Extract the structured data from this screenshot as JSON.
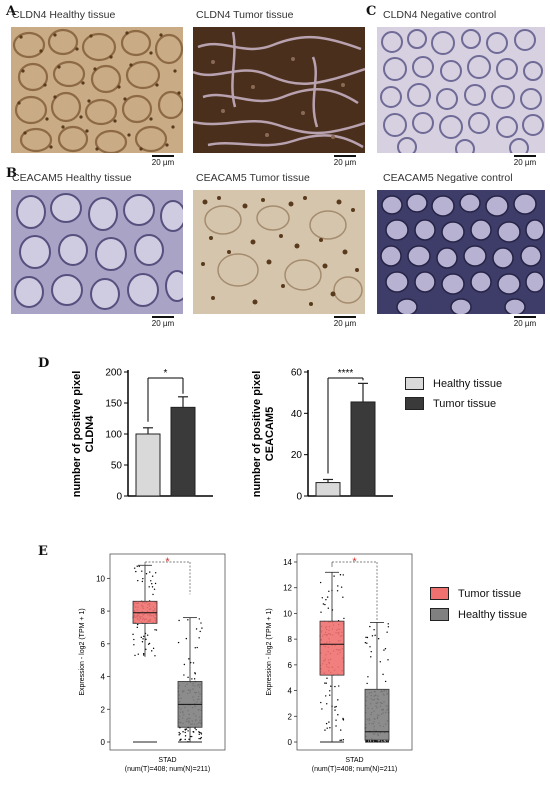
{
  "panels": {
    "a": "A",
    "c": "C",
    "b": "B",
    "d": "D",
    "e": "E"
  },
  "histology": {
    "cldn4_healthy": "CLDN4 Healthy tissue",
    "cldn4_tumor": "CLDN4 Tumor tissue",
    "cldn4_neg": "CLDN4 Negative control",
    "ceacam5_healthy": "CEACAM5 Healthy tissue",
    "ceacam5_tumor": "CEACAM5 Tumor tissue",
    "ceacam5_neg": "CEACAM5 Negative control",
    "scale_label": "20 µm"
  },
  "colors": {
    "healthy_bar": "#d9d9d9",
    "tumor_bar": "#3a3a3a",
    "tumor_box": "#f07170",
    "healthy_box": "#808080",
    "significance": "#d0312d"
  },
  "legend_d": {
    "healthy": "Healthy tissue",
    "tumor": "Tumor tissue"
  },
  "legend_e": {
    "tumor": "Tumor tissue",
    "healthy": "Healthy tissue"
  },
  "chart_data": [
    {
      "type": "bar",
      "panel": "D",
      "ylabel_line1": "number of positive pixel",
      "ylabel_line2": "CLDN4",
      "categories": [
        "Healthy tissue",
        "Tumor tissue"
      ],
      "values": [
        100,
        143
      ],
      "errors": [
        10,
        17
      ],
      "ylim": [
        0,
        200
      ],
      "yticks": [
        "0",
        "50",
        "100",
        "150",
        "200"
      ],
      "significance": "*"
    },
    {
      "type": "bar",
      "panel": "D",
      "ylabel_line1": "number of positive pixel",
      "ylabel_line2": "CEACAM5",
      "categories": [
        "Healthy tissue",
        "Tumor tissue"
      ],
      "values": [
        6.5,
        45.5
      ],
      "errors": [
        1.5,
        9
      ],
      "ylim": [
        0,
        60
      ],
      "yticks": [
        "0",
        "20",
        "40",
        "60"
      ],
      "significance": "****"
    },
    {
      "type": "box",
      "panel": "E",
      "ylabel": "Expression - log2 (TPM + 1)",
      "ylim": [
        0,
        11
      ],
      "yticks": [
        "0",
        "2",
        "4",
        "6",
        "8",
        "10"
      ],
      "xlabel": "STAD",
      "xsub": "(num(T)=408; num(N)=211)",
      "significance": "*",
      "boxes": [
        {
          "name": "Tumor tissue",
          "q1": 7.25,
          "median": 7.9,
          "q3": 8.6,
          "whisker_low": 5.2,
          "whisker_high": 10.8,
          "min": 0,
          "max": 10.8
        },
        {
          "name": "Healthy tissue",
          "q1": 0.9,
          "median": 2.3,
          "q3": 3.7,
          "whisker_low": 0,
          "whisker_high": 7.6,
          "min": 0,
          "max": 8.9
        }
      ]
    },
    {
      "type": "box",
      "panel": "E",
      "ylabel": "Expression - log2 (TPM + 1)",
      "ylim": [
        0,
        14
      ],
      "yticks": [
        "0",
        "2",
        "4",
        "6",
        "8",
        "10",
        "12",
        "14"
      ],
      "xlabel": "STAD",
      "xsub": "(num(T)=408; num(N)=211)",
      "significance": "*",
      "boxes": [
        {
          "name": "Tumor tissue",
          "q1": 5.2,
          "median": 7.6,
          "q3": 9.4,
          "whisker_low": 0,
          "whisker_high": 13.2,
          "min": 0,
          "max": 13.2
        },
        {
          "name": "Healthy tissue",
          "q1": 0.15,
          "median": 0.8,
          "q3": 4.1,
          "whisker_low": 0,
          "whisker_high": 9.3,
          "min": 0,
          "max": 9.3
        }
      ]
    }
  ]
}
